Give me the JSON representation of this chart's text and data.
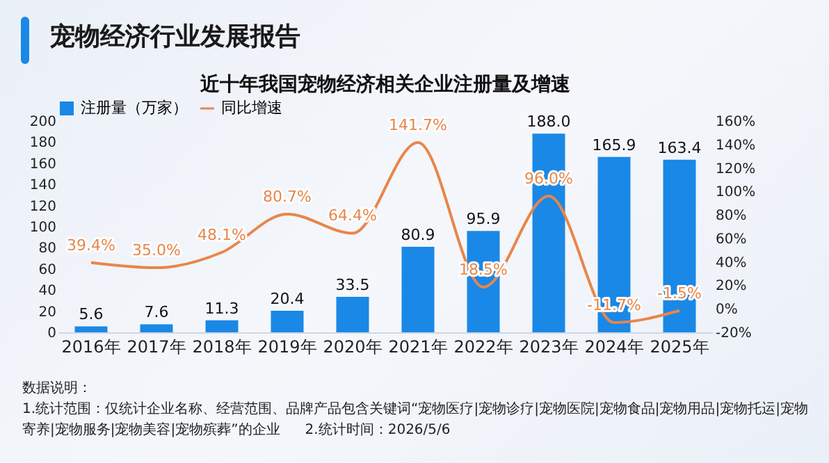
{
  "chart_data": {
    "type": "bar",
    "title": "宠物经济行业发展报告",
    "subtitle": "近十年我国宠物经济相关企业注册量及增速",
    "categories": [
      "2016年",
      "2017年",
      "2018年",
      "2019年",
      "2020年",
      "2021年",
      "2022年",
      "2023年",
      "2024年",
      "2025年"
    ],
    "series": [
      {
        "name": "注册量（万家）",
        "type": "bar",
        "color": "#1a88e6",
        "values": [
          5.6,
          7.6,
          11.3,
          20.4,
          33.5,
          80.9,
          95.9,
          188.0,
          165.9,
          163.4
        ],
        "value_labels": [
          "5.6",
          "7.6",
          "11.3",
          "20.4",
          "33.5",
          "80.9",
          "95.9",
          "188.0",
          "165.9",
          "163.4"
        ]
      },
      {
        "name": "同比增速",
        "type": "line",
        "axis": "y2",
        "color": "#e8864a",
        "values": [
          39.4,
          35.0,
          48.1,
          80.7,
          64.4,
          141.7,
          18.5,
          96.0,
          -11.7,
          -1.5
        ],
        "value_labels": [
          "39.4%",
          "35.0%",
          "48.1%",
          "80.7%",
          "64.4%",
          "141.7%",
          "18.5%",
          "96.0%",
          "-11.7%",
          "-1.5%"
        ]
      }
    ],
    "ylim": [
      0,
      200
    ],
    "yticks": [
      0,
      20,
      40,
      60,
      80,
      100,
      120,
      140,
      160,
      180,
      200
    ],
    "y2lim": [
      -20,
      160
    ],
    "y2ticks": [
      {
        "value": -20,
        "label": "-20%"
      },
      {
        "value": 0,
        "label": "0%"
      },
      {
        "value": 20,
        "label": "20%"
      },
      {
        "value": 40,
        "label": "40%"
      },
      {
        "value": 60,
        "label": "60%"
      },
      {
        "value": 80,
        "label": "80%"
      },
      {
        "value": 100,
        "label": "100%"
      },
      {
        "value": 120,
        "label": "120%"
      },
      {
        "value": 140,
        "label": "140%"
      },
      {
        "value": 160,
        "label": "160%"
      }
    ],
    "legend": "top",
    "grid": false,
    "annotations": [
      "数据说明：",
      "1.统计范围：仅统计企业名称、经营范围、品牌产品包含关键词“宠物医疗|宠物诊疗|宠物医院|宠物食品|宠物用品|宠物托运|宠物寄养|宠物服务|宠物美容|宠物殡葬”的企业",
      "2.统计时间：2026/5/6"
    ]
  }
}
